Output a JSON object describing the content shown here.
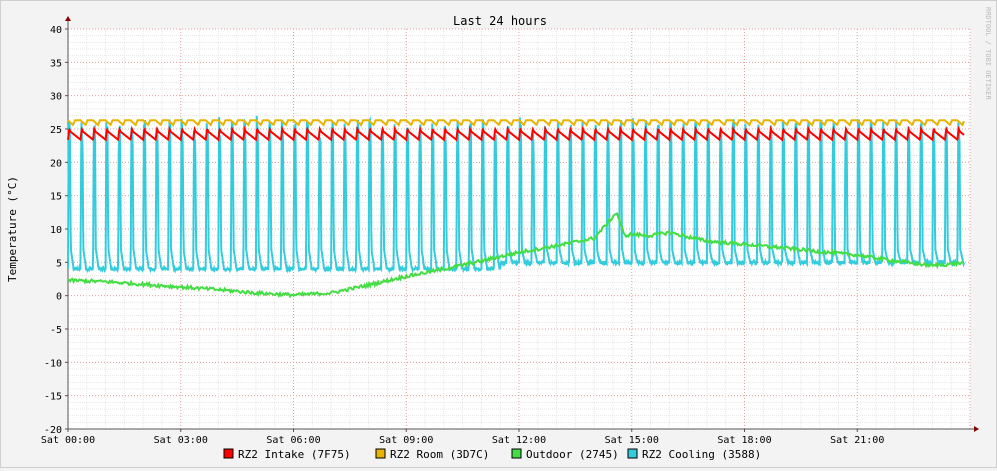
{
  "chart_data": {
    "type": "line",
    "title": "Last 24 hours",
    "ylabel": "Temperature (°C)",
    "watermark": "RRDTOOL / TOBI OETIKER",
    "ylim": [
      -20,
      40
    ],
    "yticks": [
      40,
      35,
      30,
      25,
      20,
      15,
      10,
      5,
      0,
      -5,
      -10,
      -15,
      -20
    ],
    "x_ticks": [
      "Sat 00:00",
      "Sat 03:00",
      "Sat 06:00",
      "Sat 09:00",
      "Sat 12:00",
      "Sat 15:00",
      "Sat 18:00",
      "Sat 21:00"
    ],
    "x_range_hours": [
      0,
      24
    ],
    "grid": true,
    "legend_position": "bottom",
    "series": [
      {
        "name": "RZ2 Intake (7F75)",
        "color": "#ff0000",
        "x_hours": [
          0,
          0.15,
          0.3,
          0.45,
          0.6,
          0.75,
          1,
          3,
          6,
          9,
          12,
          15,
          18,
          21,
          23.8
        ],
        "values": [
          25.0,
          24.3,
          23.4,
          24.8,
          23.3,
          24.7,
          24.0,
          24.1,
          23.9,
          24.0,
          24.1,
          24.0,
          24.0,
          24.0,
          24.5
        ],
        "note_pattern": "oscillates between about 23.3 and 25.0 roughly every 20 minutes"
      },
      {
        "name": "RZ2 Room (3D7C)",
        "color": "#e8b400",
        "x_hours": [
          0,
          0.15,
          0.3,
          3,
          6,
          9,
          12,
          15,
          18,
          21,
          23.8
        ],
        "values": [
          26.2,
          25.6,
          26.2,
          26.0,
          26.0,
          25.9,
          26.0,
          25.9,
          25.9,
          25.9,
          26.0
        ],
        "note_pattern": "oscillates between about 25.5 and 26.4"
      },
      {
        "name": "Outdoor (2745)",
        "color": "#44dd44",
        "x_hours": [
          0,
          1,
          2,
          3,
          4,
          5,
          6,
          7,
          8,
          9,
          10,
          11,
          12,
          13,
          14,
          14.6,
          14.8,
          15,
          15.5,
          16,
          16.5,
          17,
          18,
          19,
          20,
          21,
          22,
          23,
          24
        ],
        "values": [
          2.3,
          2.1,
          1.7,
          1.3,
          0.9,
          0.4,
          0.1,
          0.4,
          1.6,
          2.9,
          4.0,
          5.2,
          6.5,
          7.5,
          8.6,
          12.5,
          9.0,
          9.2,
          9.0,
          9.5,
          8.8,
          8.2,
          7.7,
          7.2,
          6.6,
          6.1,
          5.2,
          4.5,
          5.0
        ]
      },
      {
        "name": "RZ2 Cooling (3588)",
        "color": "#33ccdd",
        "x_hours": [
          0,
          0.1,
          0.2,
          0.3,
          0.4,
          0.5,
          0.6,
          3,
          6,
          9,
          12,
          15,
          18,
          21,
          23.8
        ],
        "values": [
          12.0,
          24.0,
          3.8,
          26.5,
          4.5,
          4.0,
          27.0,
          26.0,
          26.5,
          25.0,
          26.0,
          26.5,
          27.0,
          26.5,
          6.0
        ],
        "note_pattern": "spikes to about 25–27 roughly every 20 minutes, baseline near 4 before 12:00 and near 5 after"
      }
    ]
  }
}
